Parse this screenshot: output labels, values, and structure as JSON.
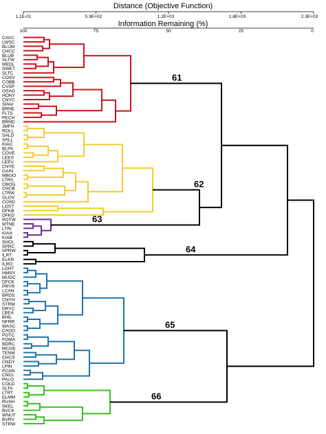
{
  "axes": {
    "top_title": "Distance (Objective Function)",
    "top_ticks": [
      "1.1E-01",
      "5.9E+02",
      "1.2E+03",
      "1.8E+03",
      "2.3E+03"
    ],
    "bottom_title": "Information Remaining (%)",
    "bottom_ticks": [
      "100",
      "75",
      "50",
      "25",
      "0"
    ]
  },
  "colors": {
    "c61": "#c8151b",
    "c62": "#f2cc2e",
    "c63": "#6a2c91",
    "c64": "#000000",
    "c65": "#1f73a8",
    "c66": "#34c21c",
    "trunk": "#000000"
  },
  "leaves": [
    "CAVC",
    "LWSC",
    "BLUM",
    "CHCC",
    "BLUB",
    "SLTW",
    "MEDL",
    "SWET",
    "SLTC",
    "COSV",
    "COBB",
    "CVSP",
    "OSAG",
    "HONY",
    "CNYC",
    "SPAV",
    "BRNE",
    "FLTS",
    "PECH",
    "BRND",
    "JMFH",
    "ROLL",
    "SALD",
    "SALL",
    "KIAC",
    "BLFK",
    "COVE",
    "LEES",
    "LEEV",
    "CNYE",
    "GAIN",
    "MBOO",
    "LTRS",
    "CBOG",
    "CHCB",
    "LTRW",
    "GLOV",
    "COSD",
    "LOST",
    "DFKB",
    "DFKD",
    "POTW",
    "MTNE",
    "LTRI",
    "KIAA",
    "KIAB",
    "SHOL",
    "SPRC",
    "SPRW",
    "ILRT",
    "ELKR",
    "ILRO",
    "LGHT",
    "HMNY",
    "MUDC",
    "DFCK",
    "PRYR",
    "LCAN",
    "BRDS",
    "CNYH",
    "STRM",
    "DRYC",
    "LBEA",
    "BHIL",
    "NFRR",
    "WASC",
    "CADO",
    "POTC",
    "FOMA",
    "BDRC",
    "MCGE",
    "TENM",
    "CHCS",
    "CNDY",
    "LPIN",
    "PCAN",
    "CNCL",
    "PALO",
    "COLD",
    "SLTA",
    "LTRT",
    "ELMM",
    "RUSH",
    "SKEL",
    "BVCK",
    "WNUT",
    "BVRV",
    "STRW"
  ],
  "clusters": [
    {
      "label": "61",
      "color_key": "c61",
      "first": 0,
      "last": 19
    },
    {
      "label": "62",
      "color_key": "c62",
      "first": 20,
      "last": 40
    },
    {
      "label": "63",
      "color_key": "c63",
      "first": 41,
      "last": 45
    },
    {
      "label": "64",
      "color_key": "c64",
      "first": 46,
      "last": 51
    },
    {
      "label": "65",
      "color_key": "c65",
      "first": 52,
      "last": 77
    },
    {
      "label": "66",
      "color_key": "c66",
      "first": 78,
      "last": 87
    }
  ]
}
